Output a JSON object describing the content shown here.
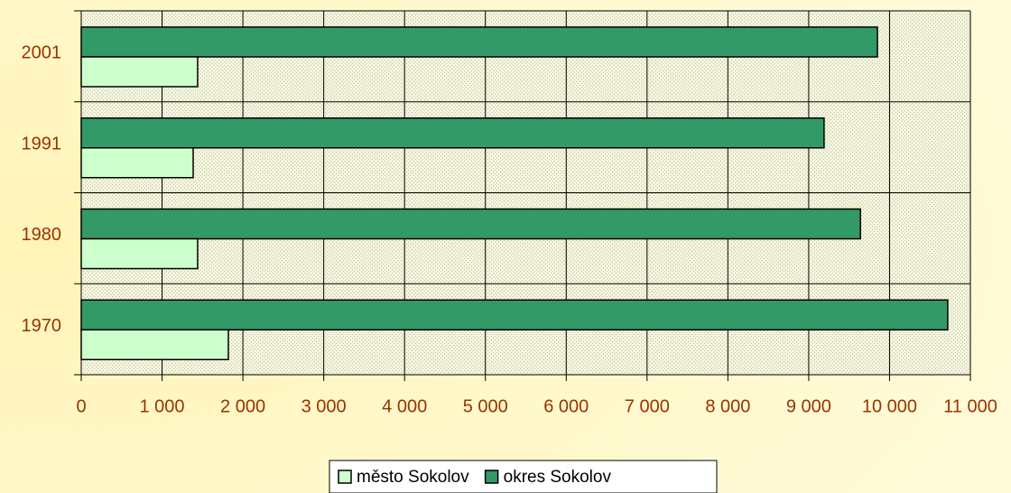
{
  "chart_data": {
    "type": "hbar",
    "categories": [
      "2001",
      "1991",
      "1980",
      "1970"
    ],
    "series": [
      {
        "name": "město Sokolov",
        "color": "#ccffcc",
        "values": [
          1440,
          1385,
          1440,
          1820
        ]
      },
      {
        "name": "okres Sokolov",
        "color": "#339966",
        "values": [
          9850,
          9190,
          9640,
          10720
        ]
      }
    ],
    "xlim": [
      0,
      11000
    ],
    "xticks": [
      0,
      {
        "value": 1000,
        "label": "1 000"
      },
      {
        "value": 2000,
        "label": "2 000"
      },
      {
        "value": 3000,
        "label": "3 000"
      },
      {
        "value": 4000,
        "label": "4 000"
      },
      {
        "value": 5000,
        "label": "5 000"
      },
      {
        "value": 6000,
        "label": "6 000"
      },
      {
        "value": 7000,
        "label": "7 000"
      },
      {
        "value": 8000,
        "label": "8 000"
      },
      {
        "value": 9000,
        "label": "9 000"
      },
      {
        "value": 10000,
        "label": "10 000"
      },
      {
        "value": 11000,
        "label": "11 000"
      }
    ],
    "grid": true,
    "legend": "bottom"
  }
}
